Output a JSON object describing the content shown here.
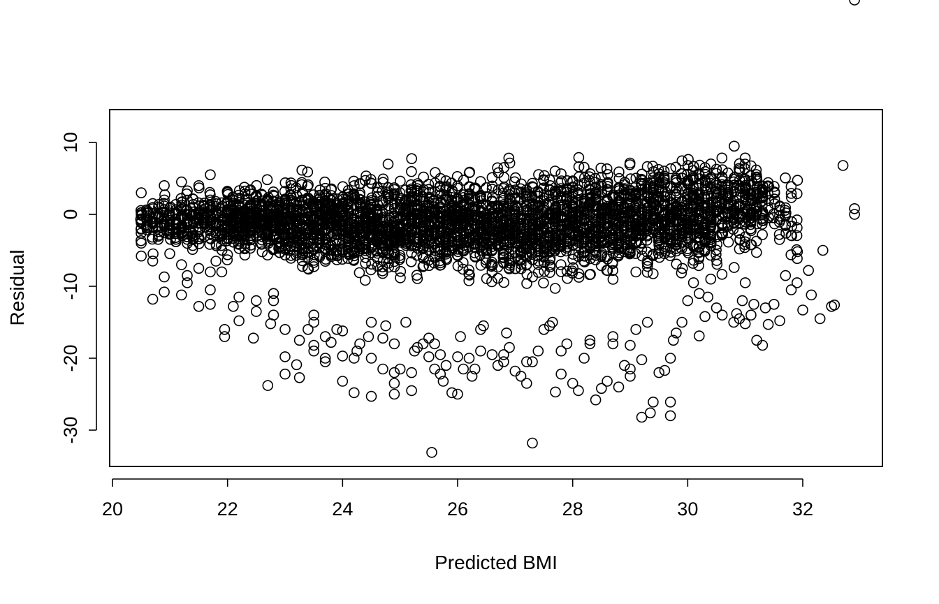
{
  "chart_data": {
    "type": "scatter",
    "title": "",
    "xlabel": "Predicted BMI",
    "ylabel": "Residual",
    "xlim": [
      20.0,
      33.3
    ],
    "ylim": [
      -34.5,
      14.5
    ],
    "x_ticks": [
      20,
      22,
      24,
      26,
      28,
      30,
      32
    ],
    "y_ticks": [
      -30,
      -20,
      -10,
      0,
      10
    ],
    "x_tick_labels": [
      "20",
      "22",
      "24",
      "26",
      "28",
      "30",
      "32"
    ],
    "y_tick_labels": [
      "-30",
      "-20",
      "-10",
      "0",
      "10"
    ],
    "grid": false,
    "legend": "none",
    "marker": "open-circle",
    "marker_color": "#000000",
    "series": [
      {
        "points_x": [
          20.5,
          20.5,
          20.5,
          20.5,
          20.7,
          20.7,
          20.7,
          20.9,
          20.9,
          20.9,
          20.9,
          21.2,
          21.2,
          21.2,
          21.3,
          21.3,
          21.5,
          21.5,
          21.5,
          21.7,
          21.7,
          21.7,
          21.7,
          21.7,
          21.9,
          21.95,
          21.95,
          22.0,
          22.1,
          22.2,
          22.2,
          22.3,
          22.45,
          22.5,
          22.5,
          22.7,
          22.75,
          22.8,
          22.8,
          22.8,
          23.0,
          23.0,
          23.0,
          23.2,
          23.25,
          23.25,
          23.4,
          23.5,
          23.5,
          23.5,
          23.5,
          23.7,
          23.7,
          23.7,
          23.8,
          23.9,
          24.0,
          24.0,
          24.0,
          24.2,
          24.2,
          24.25,
          24.3,
          24.45,
          24.5,
          24.5,
          24.5,
          24.7,
          24.7,
          24.75,
          24.9,
          24.9,
          24.9,
          24.9,
          25.0,
          25.1,
          25.2,
          25.2,
          25.25,
          25.3,
          25.4,
          25.5,
          25.5,
          25.55,
          25.6,
          25.6,
          25.7,
          25.7,
          25.75,
          25.8,
          25.9,
          26.0,
          26.0,
          26.05,
          26.1,
          26.2,
          26.25,
          26.3,
          26.4,
          26.4,
          26.45,
          26.6,
          26.7,
          26.8,
          26.8,
          26.85,
          26.9,
          27.0,
          27.1,
          27.2,
          27.2,
          27.3,
          27.3,
          27.4,
          27.5,
          27.6,
          27.65,
          27.7,
          27.8,
          27.8,
          27.9,
          28.0,
          28.1,
          28.2,
          28.3,
          28.3,
          28.4,
          28.5,
          28.6,
          28.7,
          28.7,
          28.8,
          28.9,
          29.0,
          29.0,
          29.0,
          29.1,
          29.2,
          29.2,
          29.3,
          29.35,
          29.4,
          29.5,
          29.6,
          29.7,
          29.7,
          29.7,
          29.75,
          29.8,
          29.9,
          30.0,
          30.1,
          30.2,
          30.2,
          30.3,
          30.35,
          30.4,
          30.5,
          30.6,
          30.8,
          30.85,
          30.9,
          30.95,
          31.0,
          31.0,
          31.1,
          31.15,
          31.2,
          31.3,
          31.35,
          31.4,
          31.5,
          31.6,
          31.7,
          31.8,
          31.9,
          32.0,
          32.1,
          32.15,
          32.3,
          32.35,
          32.5,
          32.55,
          32.7,
          32.9,
          32.9,
          32.9
        ],
        "points_y": [
          3.0,
          0.0,
          -4.0,
          -5.8,
          -11.8,
          -6.5,
          1.5,
          -10.8,
          -8.7,
          2.0,
          4.0,
          -11.2,
          -7.0,
          4.5,
          -9.5,
          -8.5,
          -12.8,
          -7.5,
          4.0,
          -12.5,
          -10.5,
          -8.0,
          2.0,
          5.5,
          -8.0,
          -16.0,
          -17.0,
          3.0,
          -12.8,
          -14.8,
          -11.5,
          -3.0,
          -17.2,
          -13.5,
          -12.0,
          -23.8,
          -15.2,
          -14.0,
          -11.0,
          -12.0,
          -19.8,
          -22.2,
          -16.0,
          -20.9,
          -22.7,
          -17.5,
          -16.0,
          -19.0,
          -18.2,
          -15.0,
          -14.0,
          -17.0,
          -20.0,
          -20.5,
          -17.8,
          -16.0,
          -23.2,
          -19.7,
          -16.2,
          -24.8,
          -20.0,
          -19.0,
          -18.0,
          -17.0,
          -25.3,
          -20.0,
          -15.0,
          -21.5,
          -17.2,
          -15.5,
          -25.0,
          -23.5,
          -22.0,
          -18.0,
          -21.5,
          -15.0,
          -24.5,
          -22.0,
          -19.0,
          -18.5,
          -18.0,
          -19.8,
          -17.2,
          -33.1,
          -21.5,
          -18.0,
          -22.2,
          -19.5,
          -23.2,
          -21.0,
          -24.8,
          -25.0,
          -19.8,
          -17.0,
          -21.5,
          -20.0,
          -22.5,
          -21.5,
          -19.0,
          -16.0,
          -15.5,
          -19.5,
          -21.0,
          -20.5,
          -19.5,
          -16.5,
          -18.5,
          -21.8,
          -22.5,
          -23.5,
          -20.5,
          -20.5,
          -31.8,
          -19.0,
          -16.0,
          -15.5,
          -15.0,
          -24.7,
          -22.2,
          -19.0,
          -18.0,
          -23.5,
          -24.5,
          -20.0,
          -17.5,
          -18.0,
          -25.8,
          -24.2,
          -23.2,
          -18.0,
          -17.0,
          -24.0,
          -21.0,
          -18.2,
          -22.5,
          -21.5,
          -16.0,
          -28.2,
          -20.2,
          -15.0,
          -27.6,
          -26.1,
          -22.0,
          -21.7,
          -26.1,
          -28.0,
          -20.0,
          -17.5,
          -16.5,
          -15.0,
          -12.0,
          -9.5,
          -11.0,
          -16.9,
          -14.2,
          -11.5,
          -9.0,
          -13.0,
          -14.0,
          -15.0,
          -13.8,
          -14.5,
          -12.0,
          -9.5,
          -15.2,
          -14.0,
          -12.5,
          -17.5,
          -18.2,
          -13.0,
          -15.3,
          -12.5,
          -14.8,
          -8.5,
          -10.5,
          -9.5,
          -13.3,
          -7.8,
          -11.2,
          -14.5,
          -5.0,
          -12.8,
          -12.6,
          6.8,
          0.8,
          0.0
        ],
        "band_lower": [
          -6.0,
          -7.0,
          -6.5,
          -7.5,
          -7.5,
          -9.0,
          -9.5,
          -10.0,
          -10.5,
          -11.0,
          -11.0,
          -11.0,
          -12.0,
          -12.0,
          -12.5,
          -12.0,
          -11.5,
          -11.0,
          -10.5,
          -10.0,
          -9.5,
          -9.0,
          -8.0,
          -7.0,
          -9.0,
          -9.0,
          -9.0
        ],
        "band_upper": [
          3.5,
          4.5,
          5.0,
          5.5,
          5.5,
          6.5,
          7.0,
          7.5,
          7.5,
          8.0,
          8.5,
          8.5,
          9.0,
          9.0,
          9.5,
          9.5,
          10.0,
          10.0,
          10.5,
          10.5,
          11.0,
          11.0,
          10.5,
          10.0,
          9.0,
          8.0,
          7.0
        ],
        "band_x": [
          20.5,
          21.0,
          21.5,
          22.0,
          22.5,
          23.0,
          23.5,
          24.0,
          24.5,
          25.0,
          25.5,
          26.0,
          26.5,
          27.0,
          27.5,
          28.0,
          28.5,
          29.0,
          29.5,
          30.0,
          30.5,
          31.0,
          31.3,
          31.5,
          31.8,
          32.1,
          32.5
        ]
      }
    ]
  }
}
